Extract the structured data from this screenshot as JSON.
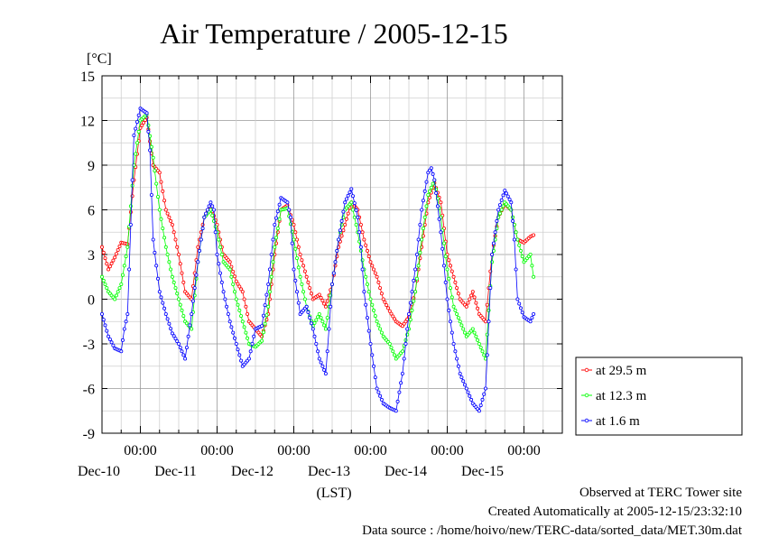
{
  "chart_data": {
    "type": "line",
    "title": "Air Temperature / 2005-12-15",
    "ylabel": "[°C]",
    "xlabel": "(LST)",
    "ylim": [
      -9,
      15
    ],
    "yticks": [
      -9,
      -6,
      -3,
      0,
      3,
      6,
      9,
      12,
      15
    ],
    "xlim": [
      0,
      144
    ],
    "x_unit": "hours from 2005-12-09 12:00 LST",
    "xticks": [
      {
        "x": 12,
        "time": "00:00",
        "date": "Dec-10"
      },
      {
        "x": 36,
        "time": "00:00",
        "date": "Dec-11"
      },
      {
        "x": 60,
        "time": "00:00",
        "date": "Dec-12"
      },
      {
        "x": 84,
        "time": "00:00",
        "date": "Dec-13"
      },
      {
        "x": 108,
        "time": "00:00",
        "date": "Dec-14"
      },
      {
        "x": 132,
        "time": "00:00",
        "date": "Dec-15"
      }
    ],
    "grid": true,
    "legend_position": "right",
    "series": [
      {
        "name": "at 29.5 m",
        "color": "#ff0000",
        "points": [
          [
            0,
            3.5
          ],
          [
            2,
            2
          ],
          [
            4,
            2.8
          ],
          [
            6,
            3.8
          ],
          [
            8,
            3.7
          ],
          [
            10,
            8
          ],
          [
            12,
            11.5
          ],
          [
            14,
            12.2
          ],
          [
            16,
            9
          ],
          [
            18,
            8.5
          ],
          [
            20,
            6
          ],
          [
            22,
            5
          ],
          [
            24,
            3
          ],
          [
            26,
            0.5
          ],
          [
            28,
            0
          ],
          [
            30,
            3.5
          ],
          [
            32,
            5.5
          ],
          [
            34,
            6.2
          ],
          [
            36,
            5
          ],
          [
            38,
            3
          ],
          [
            40,
            2.5
          ],
          [
            42,
            1.2
          ],
          [
            44,
            0.5
          ],
          [
            46,
            -1.5
          ],
          [
            48,
            -2
          ],
          [
            50,
            -2.5
          ],
          [
            52,
            -1
          ],
          [
            54,
            3
          ],
          [
            56,
            6
          ],
          [
            58,
            6.3
          ],
          [
            60,
            5
          ],
          [
            62,
            3
          ],
          [
            64,
            1.5
          ],
          [
            66,
            0
          ],
          [
            68,
            0.3
          ],
          [
            70,
            -0.5
          ],
          [
            72,
            1
          ],
          [
            74,
            3.5
          ],
          [
            76,
            5
          ],
          [
            78,
            6.5
          ],
          [
            80,
            6
          ],
          [
            82,
            4
          ],
          [
            84,
            2.5
          ],
          [
            86,
            1.5
          ],
          [
            88,
            0
          ],
          [
            90,
            -0.8
          ],
          [
            92,
            -1.5
          ],
          [
            94,
            -1.8
          ],
          [
            96,
            -1.2
          ],
          [
            98,
            0.5
          ],
          [
            100,
            3.5
          ],
          [
            102,
            6.5
          ],
          [
            104,
            7.8
          ],
          [
            106,
            6.5
          ],
          [
            108,
            3
          ],
          [
            110,
            1.5
          ],
          [
            112,
            0
          ],
          [
            114,
            -0.5
          ],
          [
            116,
            0.5
          ],
          [
            118,
            -1
          ],
          [
            120,
            -1.5
          ],
          [
            122,
            3
          ],
          [
            124,
            5.5
          ],
          [
            126,
            6.4
          ],
          [
            128,
            6
          ],
          [
            130,
            4
          ],
          [
            132,
            3.8
          ],
          [
            134,
            4.2
          ],
          [
            135,
            4.3
          ]
        ]
      },
      {
        "name": "at 12.3 m",
        "color": "#00ff00",
        "points": [
          [
            0,
            1.5
          ],
          [
            2,
            0.5
          ],
          [
            4,
            0
          ],
          [
            6,
            1
          ],
          [
            8,
            3.5
          ],
          [
            10,
            9
          ],
          [
            12,
            12
          ],
          [
            14,
            12.4
          ],
          [
            16,
            9.5
          ],
          [
            18,
            6
          ],
          [
            20,
            3.5
          ],
          [
            22,
            1.5
          ],
          [
            24,
            0
          ],
          [
            26,
            -1.5
          ],
          [
            28,
            -2
          ],
          [
            30,
            2.5
          ],
          [
            32,
            5.5
          ],
          [
            34,
            6
          ],
          [
            36,
            4.5
          ],
          [
            38,
            2.5
          ],
          [
            40,
            2
          ],
          [
            42,
            0
          ],
          [
            44,
            -1.5
          ],
          [
            46,
            -3
          ],
          [
            48,
            -3.2
          ],
          [
            50,
            -2.8
          ],
          [
            52,
            -0.5
          ],
          [
            54,
            3.5
          ],
          [
            56,
            6
          ],
          [
            58,
            6.1
          ],
          [
            60,
            4
          ],
          [
            62,
            1.5
          ],
          [
            64,
            -0.5
          ],
          [
            66,
            -1.8
          ],
          [
            68,
            -1
          ],
          [
            70,
            -2
          ],
          [
            72,
            1
          ],
          [
            74,
            4
          ],
          [
            76,
            6
          ],
          [
            78,
            6.5
          ],
          [
            80,
            4.5
          ],
          [
            82,
            2
          ],
          [
            84,
            0
          ],
          [
            86,
            -1.5
          ],
          [
            88,
            -2.5
          ],
          [
            90,
            -3
          ],
          [
            92,
            -4
          ],
          [
            94,
            -3.5
          ],
          [
            96,
            -2
          ],
          [
            98,
            0.5
          ],
          [
            100,
            4
          ],
          [
            102,
            7
          ],
          [
            104,
            8
          ],
          [
            106,
            5.5
          ],
          [
            108,
            2
          ],
          [
            110,
            -0.5
          ],
          [
            112,
            -1.5
          ],
          [
            114,
            -2.5
          ],
          [
            116,
            -2
          ],
          [
            118,
            -3
          ],
          [
            120,
            -4
          ],
          [
            122,
            2.5
          ],
          [
            124,
            5.5
          ],
          [
            126,
            6.5
          ],
          [
            128,
            6
          ],
          [
            130,
            4
          ],
          [
            132,
            2.5
          ],
          [
            134,
            3
          ],
          [
            135,
            1.5
          ]
        ]
      },
      {
        "name": "at 1.6 m",
        "color": "#0000ff",
        "points": [
          [
            0,
            -1
          ],
          [
            2,
            -2.5
          ],
          [
            4,
            -3.3
          ],
          [
            6,
            -3.5
          ],
          [
            7,
            -2
          ],
          [
            8,
            -1
          ],
          [
            10,
            11
          ],
          [
            12,
            12.8
          ],
          [
            14,
            12.5
          ],
          [
            15,
            10
          ],
          [
            16,
            4
          ],
          [
            18,
            0.5
          ],
          [
            20,
            -1
          ],
          [
            22,
            -2.3
          ],
          [
            24,
            -3
          ],
          [
            26,
            -4
          ],
          [
            28,
            -1
          ],
          [
            30,
            2.5
          ],
          [
            32,
            5.5
          ],
          [
            34,
            6.5
          ],
          [
            35,
            6
          ],
          [
            36,
            3
          ],
          [
            38,
            0.5
          ],
          [
            40,
            -1.5
          ],
          [
            42,
            -3
          ],
          [
            44,
            -4.5
          ],
          [
            46,
            -4
          ],
          [
            48,
            -2
          ],
          [
            50,
            -1.8
          ],
          [
            52,
            1
          ],
          [
            54,
            5
          ],
          [
            56,
            6.8
          ],
          [
            58,
            6.5
          ],
          [
            59,
            5.5
          ],
          [
            60,
            2
          ],
          [
            62,
            -1
          ],
          [
            64,
            -0.5
          ],
          [
            66,
            -2
          ],
          [
            68,
            -4
          ],
          [
            70,
            -5
          ],
          [
            72,
            1
          ],
          [
            74,
            4
          ],
          [
            76,
            6.5
          ],
          [
            78,
            7.4
          ],
          [
            80,
            5.5
          ],
          [
            81,
            3.5
          ],
          [
            82,
            0.5
          ],
          [
            84,
            -3
          ],
          [
            86,
            -6
          ],
          [
            88,
            -7
          ],
          [
            90,
            -7.3
          ],
          [
            92,
            -7.5
          ],
          [
            94,
            -5
          ],
          [
            96,
            -1
          ],
          [
            98,
            2
          ],
          [
            100,
            6
          ],
          [
            102,
            8.5
          ],
          [
            103,
            8.8
          ],
          [
            104,
            8
          ],
          [
            106,
            4.5
          ],
          [
            108,
            0
          ],
          [
            110,
            -3
          ],
          [
            112,
            -5
          ],
          [
            114,
            -6
          ],
          [
            116,
            -7
          ],
          [
            118,
            -7.5
          ],
          [
            120,
            -6
          ],
          [
            122,
            3
          ],
          [
            124,
            6
          ],
          [
            126,
            7.3
          ],
          [
            128,
            6.5
          ],
          [
            129,
            4
          ],
          [
            130,
            0
          ],
          [
            132,
            -1.2
          ],
          [
            134,
            -1.5
          ],
          [
            135,
            -1
          ]
        ]
      }
    ]
  },
  "footer": {
    "site": "Observed at TERC Tower site",
    "created": "Created Automatically at 2005-12-15/23:32:10",
    "source": "Data source : /home/hoivo/new/TERC-data/sorted_data/MET.30m.dat"
  }
}
